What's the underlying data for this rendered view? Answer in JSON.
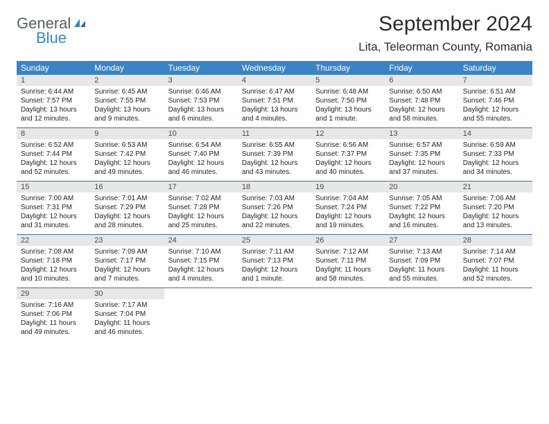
{
  "logo": {
    "general": "General",
    "blue": "Blue"
  },
  "title": "September 2024",
  "location": "Lita, Teleorman County, Romania",
  "colors": {
    "header_bg": "#3a84c4",
    "header_text": "#ffffff",
    "daynum_bg": "#e7e7e7",
    "week_border": "#3a6ea5",
    "logo_general": "#555c63",
    "logo_blue": "#3a84c4"
  },
  "weekdays": [
    "Sunday",
    "Monday",
    "Tuesday",
    "Wednesday",
    "Thursday",
    "Friday",
    "Saturday"
  ],
  "weeks": [
    [
      {
        "n": "1",
        "sunrise": "6:44 AM",
        "sunset": "7:57 PM",
        "daylight": "13 hours and 12 minutes."
      },
      {
        "n": "2",
        "sunrise": "6:45 AM",
        "sunset": "7:55 PM",
        "daylight": "13 hours and 9 minutes."
      },
      {
        "n": "3",
        "sunrise": "6:46 AM",
        "sunset": "7:53 PM",
        "daylight": "13 hours and 6 minutes."
      },
      {
        "n": "4",
        "sunrise": "6:47 AM",
        "sunset": "7:51 PM",
        "daylight": "13 hours and 4 minutes."
      },
      {
        "n": "5",
        "sunrise": "6:48 AM",
        "sunset": "7:50 PM",
        "daylight": "13 hours and 1 minute."
      },
      {
        "n": "6",
        "sunrise": "6:50 AM",
        "sunset": "7:48 PM",
        "daylight": "12 hours and 58 minutes."
      },
      {
        "n": "7",
        "sunrise": "6:51 AM",
        "sunset": "7:46 PM",
        "daylight": "12 hours and 55 minutes."
      }
    ],
    [
      {
        "n": "8",
        "sunrise": "6:52 AM",
        "sunset": "7:44 PM",
        "daylight": "12 hours and 52 minutes."
      },
      {
        "n": "9",
        "sunrise": "6:53 AM",
        "sunset": "7:42 PM",
        "daylight": "12 hours and 49 minutes."
      },
      {
        "n": "10",
        "sunrise": "6:54 AM",
        "sunset": "7:40 PM",
        "daylight": "12 hours and 46 minutes."
      },
      {
        "n": "11",
        "sunrise": "6:55 AM",
        "sunset": "7:39 PM",
        "daylight": "12 hours and 43 minutes."
      },
      {
        "n": "12",
        "sunrise": "6:56 AM",
        "sunset": "7:37 PM",
        "daylight": "12 hours and 40 minutes."
      },
      {
        "n": "13",
        "sunrise": "6:57 AM",
        "sunset": "7:35 PM",
        "daylight": "12 hours and 37 minutes."
      },
      {
        "n": "14",
        "sunrise": "6:59 AM",
        "sunset": "7:33 PM",
        "daylight": "12 hours and 34 minutes."
      }
    ],
    [
      {
        "n": "15",
        "sunrise": "7:00 AM",
        "sunset": "7:31 PM",
        "daylight": "12 hours and 31 minutes."
      },
      {
        "n": "16",
        "sunrise": "7:01 AM",
        "sunset": "7:29 PM",
        "daylight": "12 hours and 28 minutes."
      },
      {
        "n": "17",
        "sunrise": "7:02 AM",
        "sunset": "7:28 PM",
        "daylight": "12 hours and 25 minutes."
      },
      {
        "n": "18",
        "sunrise": "7:03 AM",
        "sunset": "7:26 PM",
        "daylight": "12 hours and 22 minutes."
      },
      {
        "n": "19",
        "sunrise": "7:04 AM",
        "sunset": "7:24 PM",
        "daylight": "12 hours and 19 minutes."
      },
      {
        "n": "20",
        "sunrise": "7:05 AM",
        "sunset": "7:22 PM",
        "daylight": "12 hours and 16 minutes."
      },
      {
        "n": "21",
        "sunrise": "7:06 AM",
        "sunset": "7:20 PM",
        "daylight": "12 hours and 13 minutes."
      }
    ],
    [
      {
        "n": "22",
        "sunrise": "7:08 AM",
        "sunset": "7:18 PM",
        "daylight": "12 hours and 10 minutes."
      },
      {
        "n": "23",
        "sunrise": "7:09 AM",
        "sunset": "7:17 PM",
        "daylight": "12 hours and 7 minutes."
      },
      {
        "n": "24",
        "sunrise": "7:10 AM",
        "sunset": "7:15 PM",
        "daylight": "12 hours and 4 minutes."
      },
      {
        "n": "25",
        "sunrise": "7:11 AM",
        "sunset": "7:13 PM",
        "daylight": "12 hours and 1 minute."
      },
      {
        "n": "26",
        "sunrise": "7:12 AM",
        "sunset": "7:11 PM",
        "daylight": "11 hours and 58 minutes."
      },
      {
        "n": "27",
        "sunrise": "7:13 AM",
        "sunset": "7:09 PM",
        "daylight": "11 hours and 55 minutes."
      },
      {
        "n": "28",
        "sunrise": "7:14 AM",
        "sunset": "7:07 PM",
        "daylight": "11 hours and 52 minutes."
      }
    ],
    [
      {
        "n": "29",
        "sunrise": "7:16 AM",
        "sunset": "7:06 PM",
        "daylight": "11 hours and 49 minutes."
      },
      {
        "n": "30",
        "sunrise": "7:17 AM",
        "sunset": "7:04 PM",
        "daylight": "11 hours and 46 minutes."
      },
      {
        "empty": true
      },
      {
        "empty": true
      },
      {
        "empty": true
      },
      {
        "empty": true
      },
      {
        "empty": true
      }
    ]
  ],
  "labels": {
    "sunrise": "Sunrise:",
    "sunset": "Sunset:",
    "daylight": "Daylight:"
  }
}
